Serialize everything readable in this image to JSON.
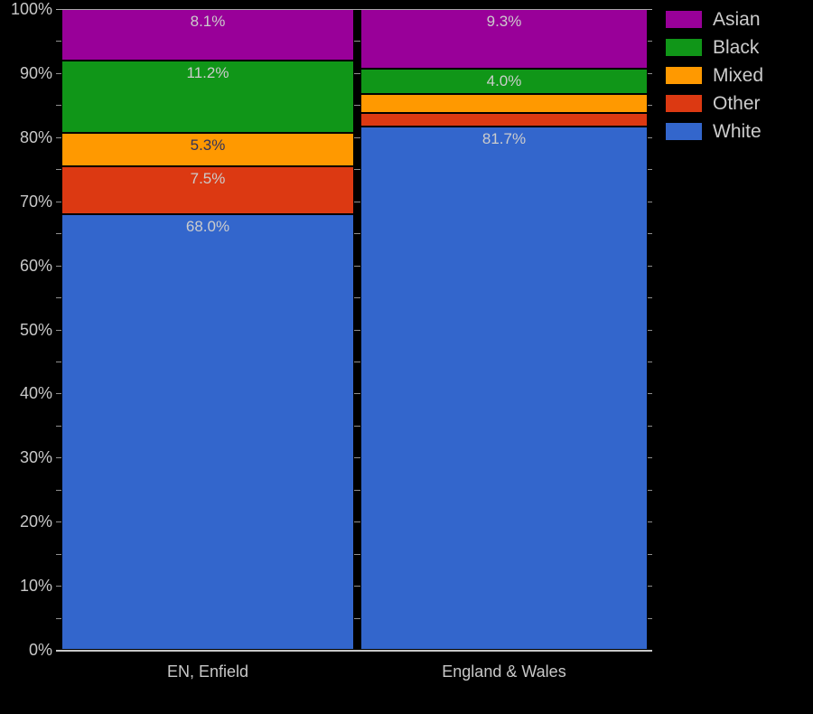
{
  "chart_data": {
    "type": "bar",
    "stacked": true,
    "percent_stacked": true,
    "title": "",
    "categories": [
      "EN, Enfield",
      "England & Wales"
    ],
    "series": [
      {
        "name": "Asian",
        "color": "#990099",
        "label_color": "#cccccc",
        "values": [
          8.1,
          9.3
        ],
        "labels": [
          "8.1%",
          "9.3%"
        ]
      },
      {
        "name": "Black",
        "color": "#109618",
        "label_color": "#cccccc",
        "values": [
          11.2,
          4.0
        ],
        "labels": [
          "11.2%",
          "4.0%"
        ]
      },
      {
        "name": "Mixed",
        "color": "#FF9900",
        "label_color": "#32325a",
        "values": [
          5.3,
          2.9
        ],
        "labels": [
          "5.3%",
          ""
        ]
      },
      {
        "name": "Other",
        "color": "#DC3912",
        "label_color": "#cccccc",
        "values": [
          7.5,
          2.1
        ],
        "labels": [
          "7.5%",
          ""
        ]
      },
      {
        "name": "White",
        "color": "#3366CC",
        "label_color": "#cccccc",
        "values": [
          68.0,
          81.7
        ],
        "labels": [
          "68.0%",
          "81.7%"
        ]
      }
    ],
    "yticks": [
      "0%",
      "10%",
      "20%",
      "30%",
      "40%",
      "50%",
      "60%",
      "70%",
      "80%",
      "90%",
      "100%"
    ],
    "ylim": [
      0,
      100
    ],
    "minor_grid_step_percent": 5,
    "grid": true,
    "legend_position": "top-right",
    "stack_order_top_to_bottom": [
      "Asian",
      "Black",
      "Mixed",
      "Other",
      "White"
    ],
    "background_color": "#000000",
    "grid_color": "#8f8f8f",
    "axis_line_color": "#c8c8c8",
    "tick_label_color": "#c8c8c8",
    "category_label_color": "#c8c8c8"
  }
}
